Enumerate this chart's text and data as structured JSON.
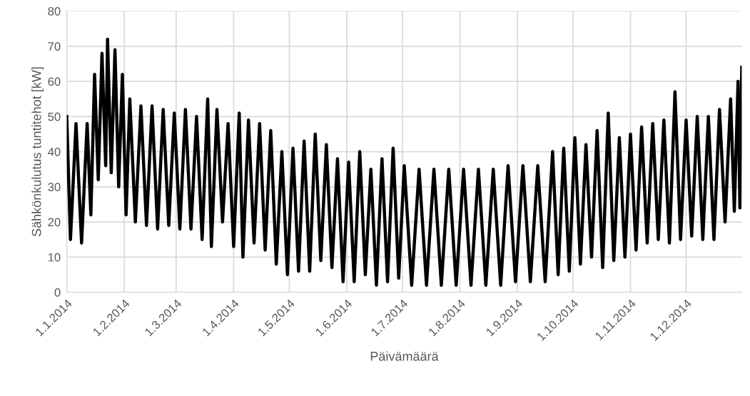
{
  "chart_data": {
    "type": "line",
    "xlabel": "Päivämäärä",
    "ylabel": "Sähkönkulutus tuntitehot [kW]",
    "series": [
      {
        "color": "#000000",
        "x": [
          "2014-01-01",
          "2014-01-03",
          "2014-01-06",
          "2014-01-09",
          "2014-01-12",
          "2014-01-14",
          "2014-01-16",
          "2014-01-18",
          "2014-01-20",
          "2014-01-22",
          "2014-01-23",
          "2014-01-25",
          "2014-01-27",
          "2014-01-29",
          "2014-01-31",
          "2014-02-02",
          "2014-02-04",
          "2014-02-07",
          "2014-02-10",
          "2014-02-13",
          "2014-02-16",
          "2014-02-19",
          "2014-02-22",
          "2014-02-25",
          "2014-02-28",
          "2014-03-03",
          "2014-03-06",
          "2014-03-09",
          "2014-03-12",
          "2014-03-15",
          "2014-03-18",
          "2014-03-20",
          "2014-03-23",
          "2014-03-26",
          "2014-03-29",
          "2014-04-01",
          "2014-04-04",
          "2014-04-06",
          "2014-04-09",
          "2014-04-12",
          "2014-04-15",
          "2014-04-18",
          "2014-04-21",
          "2014-04-24",
          "2014-04-27",
          "2014-04-30",
          "2014-05-03",
          "2014-05-06",
          "2014-05-09",
          "2014-05-12",
          "2014-05-15",
          "2014-05-18",
          "2014-05-21",
          "2014-05-24",
          "2014-05-27",
          "2014-05-30",
          "2014-06-02",
          "2014-06-05",
          "2014-06-08",
          "2014-06-11",
          "2014-06-14",
          "2014-06-17",
          "2014-06-20",
          "2014-06-23",
          "2014-06-26",
          "2014-06-29",
          "2014-07-02",
          "2014-07-06",
          "2014-07-10",
          "2014-07-14",
          "2014-07-18",
          "2014-07-22",
          "2014-07-26",
          "2014-07-30",
          "2014-08-03",
          "2014-08-07",
          "2014-08-11",
          "2014-08-15",
          "2014-08-19",
          "2014-08-23",
          "2014-08-27",
          "2014-08-31",
          "2014-09-04",
          "2014-09-08",
          "2014-09-12",
          "2014-09-16",
          "2014-09-20",
          "2014-09-23",
          "2014-09-26",
          "2014-09-29",
          "2014-10-02",
          "2014-10-05",
          "2014-10-08",
          "2014-10-11",
          "2014-10-14",
          "2014-10-17",
          "2014-10-20",
          "2014-10-23",
          "2014-10-26",
          "2014-10-29",
          "2014-11-01",
          "2014-11-04",
          "2014-11-07",
          "2014-11-10",
          "2014-11-13",
          "2014-11-16",
          "2014-11-19",
          "2014-11-22",
          "2014-11-25",
          "2014-11-28",
          "2014-12-01",
          "2014-12-04",
          "2014-12-07",
          "2014-12-10",
          "2014-12-13",
          "2014-12-16",
          "2014-12-19",
          "2014-12-22",
          "2014-12-25",
          "2014-12-27",
          "2014-12-29",
          "2014-12-30",
          "2014-12-31"
        ],
        "values": [
          50,
          15,
          48,
          14,
          48,
          22,
          62,
          32,
          68,
          36,
          72,
          34,
          69,
          30,
          62,
          22,
          55,
          20,
          53,
          19,
          53,
          18,
          52,
          19,
          51,
          18,
          52,
          18,
          50,
          15,
          55,
          13,
          52,
          20,
          48,
          13,
          51,
          10,
          49,
          14,
          48,
          12,
          46,
          8,
          40,
          5,
          41,
          6,
          43,
          6,
          45,
          9,
          42,
          7,
          38,
          3,
          37,
          3,
          40,
          5,
          35,
          2,
          38,
          3,
          41,
          4,
          36,
          2,
          35,
          2,
          35,
          2,
          35,
          2,
          35,
          2,
          35,
          2,
          35,
          2,
          36,
          3,
          36,
          3,
          36,
          3,
          40,
          5,
          41,
          6,
          44,
          8,
          42,
          10,
          46,
          7,
          51,
          9,
          44,
          10,
          45,
          12,
          47,
          14,
          48,
          15,
          49,
          14,
          57,
          15,
          49,
          16,
          50,
          15,
          50,
          15,
          52,
          20,
          55,
          23,
          60,
          24,
          64
        ]
      }
    ],
    "xlim": [
      "2014-01-01",
      "2014-12-31"
    ],
    "xticks": [
      {
        "value": "2014-01-01",
        "label": "1.1.2014"
      },
      {
        "value": "2014-02-01",
        "label": "1.2.2014"
      },
      {
        "value": "2014-03-01",
        "label": "1.3.2014"
      },
      {
        "value": "2014-04-01",
        "label": "1.4.2014"
      },
      {
        "value": "2014-05-01",
        "label": "1.5.2014"
      },
      {
        "value": "2014-06-01",
        "label": "1.6.2014"
      },
      {
        "value": "2014-07-01",
        "label": "1.7.2014"
      },
      {
        "value": "2014-08-01",
        "label": "1.8.2014"
      },
      {
        "value": "2014-09-01",
        "label": "1.9.2014"
      },
      {
        "value": "2014-10-01",
        "label": "1.10.2014"
      },
      {
        "value": "2014-11-01",
        "label": "1.11.2014"
      },
      {
        "value": "2014-12-01",
        "label": "1.12.2014"
      }
    ],
    "ylim": [
      0,
      80
    ],
    "yticks": [
      0,
      10,
      20,
      30,
      40,
      50,
      60,
      70,
      80
    ],
    "grid": true,
    "line_style": "solid"
  }
}
